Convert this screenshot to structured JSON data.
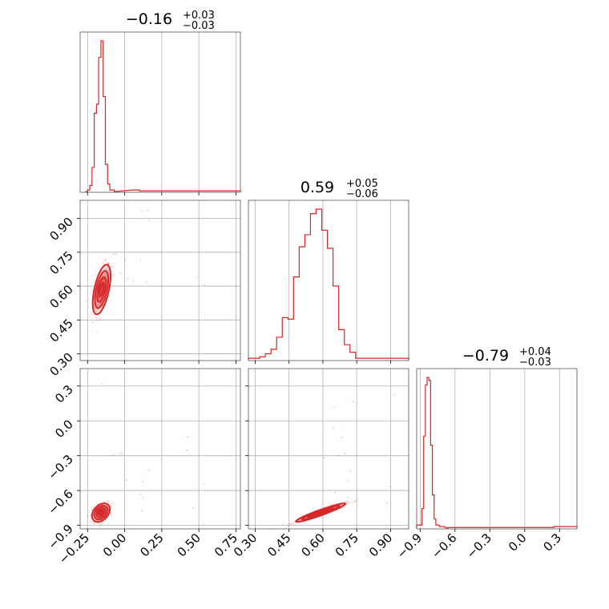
{
  "colors": {
    "series": "#d62728",
    "grid": "#b0b0b0",
    "frame": "#555555",
    "text": "#000000"
  },
  "chart_data": {
    "type": "corner",
    "parameters": [
      {
        "median": -0.16,
        "plus": "+0.03",
        "minus": "−0.03",
        "title_main": "−0.16",
        "range": [
          -0.3,
          0.78
        ]
      },
      {
        "median": 0.59,
        "plus": "+0.05",
        "minus": "−0.06",
        "title_main": "0.59",
        "range": [
          0.27,
          0.98
        ]
      },
      {
        "median": -0.79,
        "plus": "+0.04",
        "minus": "−0.03",
        "title_main": "−0.79",
        "range": [
          -0.93,
          0.45
        ]
      }
    ],
    "ticks": [
      {
        "values": [
          -0.25,
          0.0,
          0.25,
          0.5,
          0.75
        ],
        "labels": [
          "−0.25",
          "0.00",
          "0.25",
          "0.50",
          "0.75"
        ]
      },
      {
        "values": [
          0.3,
          0.45,
          0.6,
          0.75,
          0.9
        ],
        "labels": [
          "0.30",
          "0.45",
          "0.60",
          "0.75",
          "0.90"
        ]
      },
      {
        "values": [
          -0.9,
          -0.6,
          -0.3,
          0.0,
          0.3
        ],
        "labels": [
          "−0.9",
          "−0.6",
          "−0.3",
          "0.0",
          "0.3"
        ]
      }
    ],
    "histograms": [
      {
        "edges": [
          -0.265,
          -0.25,
          -0.235,
          -0.22,
          -0.205,
          -0.19,
          -0.175,
          -0.16,
          -0.145,
          -0.13,
          -0.115,
          -0.1,
          -0.085,
          -0.07,
          -0.055
        ],
        "counts": [
          0,
          0.01,
          0.04,
          0.16,
          0.52,
          0.58,
          0.89,
          1.0,
          0.63,
          0.18,
          0.05,
          0.01,
          0.01,
          0
        ],
        "tail": [
          [
            0.05,
            0.1,
            0.01
          ],
          [
            0.1,
            0.78,
            0.004
          ]
        ]
      },
      {
        "edges": [
          0.27,
          0.32,
          0.345,
          0.37,
          0.395,
          0.42,
          0.445,
          0.47,
          0.495,
          0.52,
          0.545,
          0.57,
          0.595,
          0.62,
          0.645,
          0.67,
          0.695,
          0.72,
          0.745,
          0.77,
          0.98
        ],
        "counts": [
          0.01,
          0.02,
          0.04,
          0.07,
          0.15,
          0.28,
          0.27,
          0.55,
          0.75,
          0.83,
          0.97,
          1.0,
          0.86,
          0.74,
          0.49,
          0.2,
          0.1,
          0.05,
          0.01,
          0.01
        ],
        "tail": []
      },
      {
        "edges": [
          -0.93,
          -0.9,
          -0.885,
          -0.87,
          -0.855,
          -0.84,
          -0.825,
          -0.81,
          -0.795,
          -0.78,
          -0.765,
          -0.75,
          -0.735,
          -0.72,
          -0.705,
          -0.69,
          -0.675,
          -0.66
        ],
        "counts": [
          0.02,
          0.02,
          0.13,
          0.61,
          0.95,
          1.0,
          0.98,
          0.55,
          0.22,
          0.06,
          0.02,
          0.02,
          0.01,
          0.01,
          0.01,
          0.005,
          0
        ],
        "tail": [
          [
            -0.66,
            0.25,
            0.004
          ],
          [
            0.25,
            0.45,
            0.01
          ]
        ]
      }
    ],
    "pairs": [
      {
        "x_param": 0,
        "y_param": 1,
        "center": [
          -0.155,
          0.585
        ],
        "sigma": [
          0.03,
          0.055
        ],
        "corr": 0.55
      },
      {
        "x_param": 0,
        "y_param": 2,
        "center": [
          -0.16,
          -0.79
        ],
        "sigma": [
          0.03,
          0.04
        ],
        "corr": 0.35
      },
      {
        "x_param": 1,
        "y_param": 2,
        "center": [
          0.59,
          -0.79
        ],
        "sigma": [
          0.055,
          0.04
        ],
        "corr": 0.95
      }
    ]
  }
}
